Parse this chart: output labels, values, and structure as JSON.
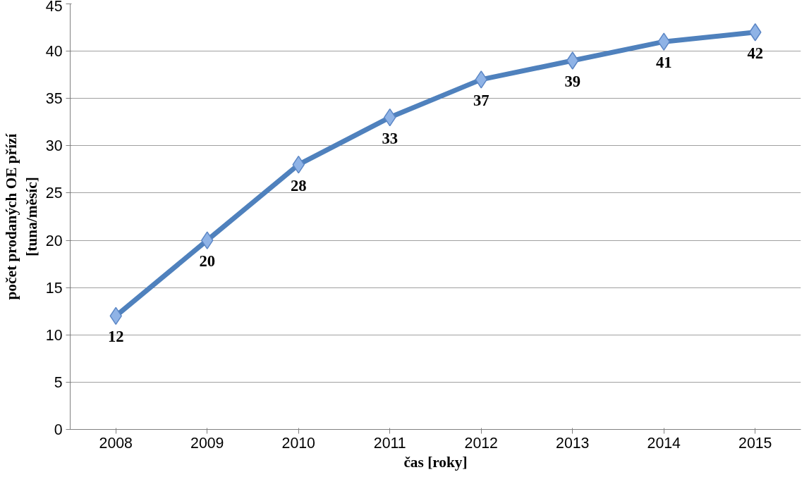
{
  "chart_data": {
    "type": "line",
    "xlabel": "čas [roky]",
    "ylabel": "počet prodaných OE přízí\n[tuna/měsíc]",
    "categories": [
      "2008",
      "2009",
      "2010",
      "2011",
      "2012",
      "2013",
      "2014",
      "2015"
    ],
    "series": [
      {
        "color": "#4f81bd",
        "values": [
          12,
          20,
          28,
          33,
          37,
          39,
          41,
          42
        ]
      }
    ],
    "ylim": [
      0,
      45
    ],
    "yticks": [
      0,
      5,
      10,
      15,
      20,
      25,
      30,
      35,
      40,
      45
    ],
    "grid": "y",
    "marker": "diamond",
    "data_labels": true
  }
}
